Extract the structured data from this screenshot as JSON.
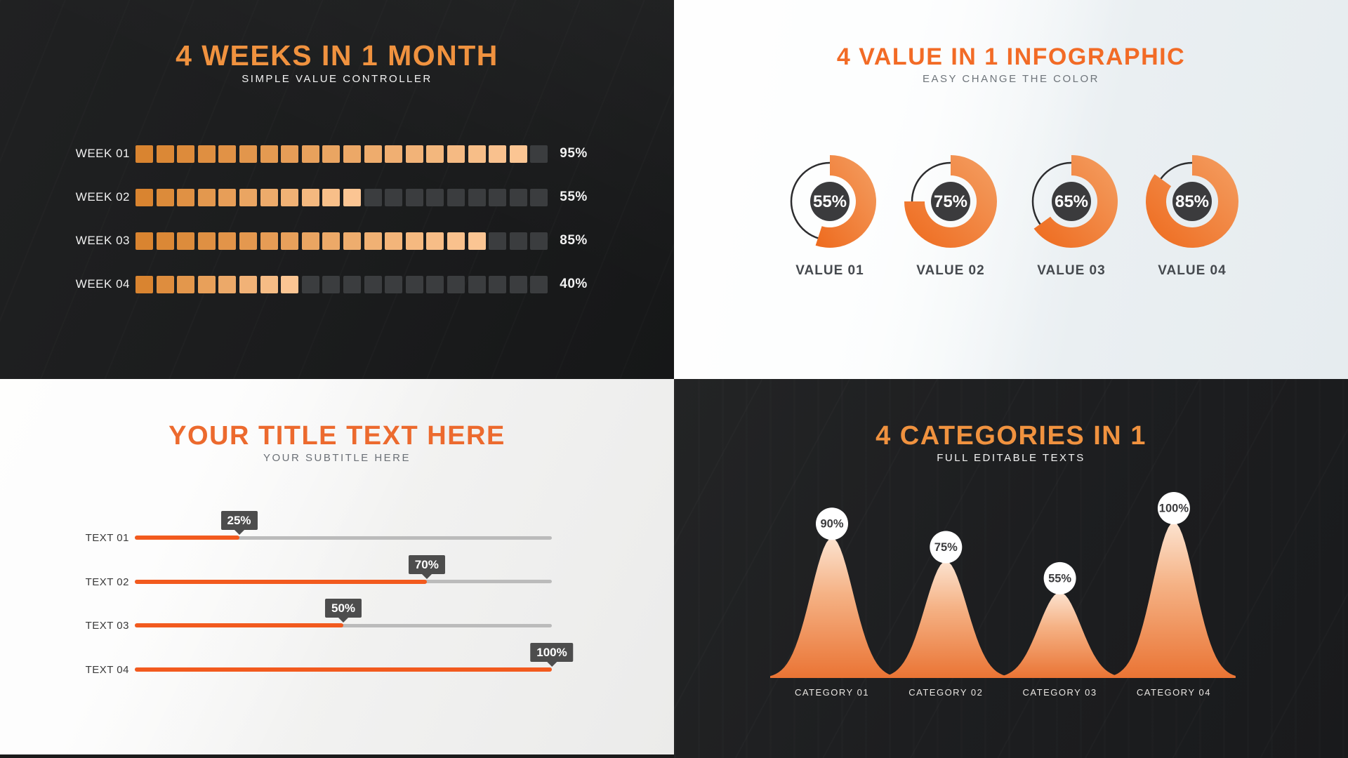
{
  "sections": {
    "weeks": {
      "title": "4 WEEKS IN 1 MONTH",
      "subtitle": "SIMPLE VALUE CONTROLLER",
      "accent": "#f0923f",
      "segments_total": 20,
      "bar_colors": {
        "filled_start": "#d98430",
        "filled_end": "#fbc593",
        "empty": "#3b3d3f"
      },
      "rows": [
        {
          "label": "WEEK 01",
          "value": "95%",
          "percent": 95
        },
        {
          "label": "WEEK 02",
          "value": "55%",
          "percent": 55
        },
        {
          "label": "WEEK 03",
          "value": "85%",
          "percent": 85
        },
        {
          "label": "WEEK 04",
          "value": "40%",
          "percent": 40
        }
      ]
    },
    "values": {
      "title": "4 VALUE IN 1 INFOGRAPHIC",
      "subtitle": "EASY CHANGE THE COLOR",
      "accent": "#f26b26",
      "gauge_colors": {
        "arc_start": "#ee6a1d",
        "arc_end": "#f49f63",
        "center": "#3b3b3d",
        "ring": "#2d2d2f",
        "value_text": "#ffffff"
      },
      "items": [
        {
          "label": "VALUE 01",
          "value": "55%",
          "percent": 55
        },
        {
          "label": "VALUE 02",
          "value": "75%",
          "percent": 75
        },
        {
          "label": "VALUE 03",
          "value": "65%",
          "percent": 65
        },
        {
          "label": "VALUE 04",
          "value": "85%",
          "percent": 85
        }
      ]
    },
    "sliders": {
      "title": "YOUR TITLE TEXT HERE",
      "subtitle": "YOUR SUBTITLE HERE",
      "accent": "#ec6a2e",
      "slider_colors": {
        "fill": "#f25a1e",
        "track": "#bbbbbb",
        "tooltip": "#4d4d4d"
      },
      "rows": [
        {
          "label": "TEXT 01",
          "value": "25%",
          "percent": 25
        },
        {
          "label": "TEXT 02",
          "value": "70%",
          "percent": 70
        },
        {
          "label": "TEXT 03",
          "value": "50%",
          "percent": 50
        },
        {
          "label": "TEXT 04",
          "value": "100%",
          "percent": 100
        }
      ]
    },
    "categories": {
      "title": "4 CATEGORIES IN 1",
      "subtitle": "FULL EDITABLE TEXTS",
      "accent": "#f0923f",
      "peak_colors": {
        "top": "#fce3d0",
        "mid": "#f5b285",
        "bottom": "#ea7434",
        "badge": "#ffffff",
        "badge_text": "#3b3b3d",
        "label": "#e9e6e2"
      },
      "items": [
        {
          "label": "CATEGORY 01",
          "value": "90%",
          "percent": 90
        },
        {
          "label": "CATEGORY 02",
          "value": "75%",
          "percent": 75
        },
        {
          "label": "CATEGORY 03",
          "value": "55%",
          "percent": 55
        },
        {
          "label": "CATEGORY 04",
          "value": "100%",
          "percent": 100
        }
      ]
    }
  },
  "chart_data": [
    {
      "type": "bar",
      "variant": "segmented-progress",
      "title": "4 WEEKS IN 1 MONTH",
      "subtitle": "SIMPLE VALUE CONTROLLER",
      "categories": [
        "WEEK 01",
        "WEEK 02",
        "WEEK 03",
        "WEEK 04"
      ],
      "values": [
        95,
        55,
        85,
        40
      ],
      "unit": "%",
      "segments_per_bar": 20,
      "xlim": [
        0,
        100
      ],
      "legend": "none",
      "grid": false
    },
    {
      "type": "pie",
      "variant": "donut-gauge",
      "title": "4 VALUE IN 1 INFOGRAPHIC",
      "subtitle": "EASY CHANGE THE COLOR",
      "categories": [
        "VALUE 01",
        "VALUE 02",
        "VALUE 03",
        "VALUE 04"
      ],
      "values": [
        55,
        75,
        65,
        85
      ],
      "unit": "%",
      "start_angle": "12-oclock",
      "direction": "clockwise",
      "legend": "none",
      "grid": false
    },
    {
      "type": "bar",
      "variant": "slider-progress",
      "title": "YOUR TITLE TEXT HERE",
      "subtitle": "YOUR SUBTITLE HERE",
      "categories": [
        "TEXT 01",
        "TEXT 02",
        "TEXT 03",
        "TEXT 04"
      ],
      "values": [
        25,
        70,
        50,
        100
      ],
      "unit": "%",
      "xlim": [
        0,
        100
      ],
      "legend": "none",
      "grid": false
    },
    {
      "type": "area",
      "variant": "bell-peaks",
      "title": "4 CATEGORIES IN 1",
      "subtitle": "FULL EDITABLE TEXTS",
      "categories": [
        "CATEGORY 01",
        "CATEGORY 02",
        "CATEGORY 03",
        "CATEGORY 04"
      ],
      "values": [
        90,
        75,
        55,
        100
      ],
      "unit": "%",
      "ylim": [
        0,
        100
      ],
      "legend": "none",
      "grid": false
    }
  ]
}
